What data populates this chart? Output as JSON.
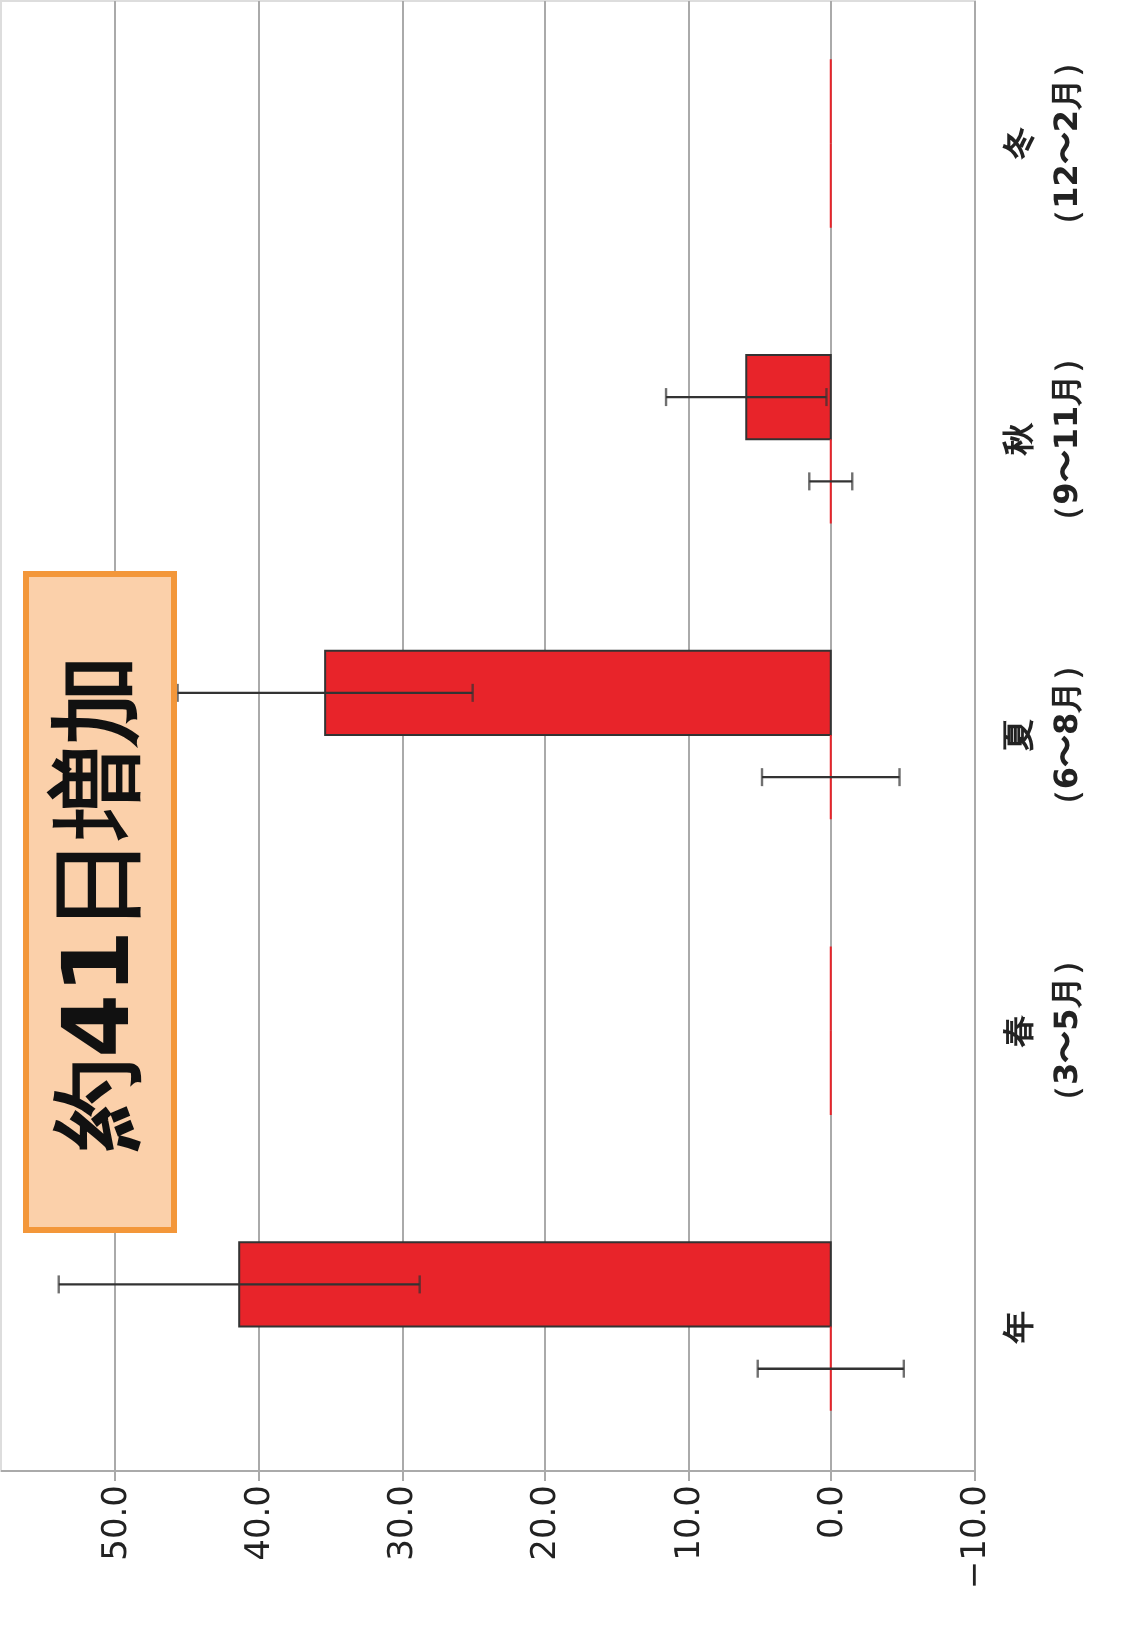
{
  "chart_data": {
    "type": "bar",
    "orientation": "horizontal",
    "categories": [
      "冬（12〜2月）",
      "秋（9〜11月）",
      "夏（6〜8月）",
      "春（3〜5月）",
      "年"
    ],
    "series": [
      {
        "color": "#e8242a",
        "values": [
          0,
          5.9,
          35.3,
          0,
          41.3
        ],
        "errors": [
          0,
          5.6,
          10.3,
          0,
          12.6
        ]
      },
      {
        "color": "#e8242a",
        "values": [
          0,
          0,
          0,
          0,
          0
        ],
        "errors": [
          0,
          1.5,
          4.8,
          0,
          5.1
        ]
      }
    ],
    "xlim": [
      58,
      -10
    ],
    "xticks": [
      {
        "value": 50,
        "label": "50.0"
      },
      {
        "value": 40,
        "label": "40.0"
      },
      {
        "value": 30,
        "label": "30.0"
      },
      {
        "value": 20,
        "label": "20.0"
      },
      {
        "value": 10,
        "label": "10.0"
      },
      {
        "value": 0,
        "label": "0.0"
      },
      {
        "value": -10,
        "label": "−10.0"
      }
    ],
    "grid": "x",
    "legend": false,
    "annotations": [
      "約41日増加"
    ]
  }
}
